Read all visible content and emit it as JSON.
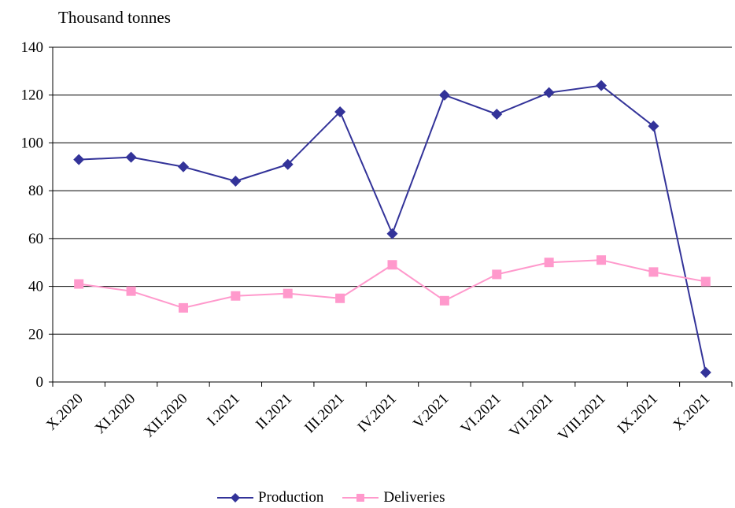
{
  "chart_data": {
    "type": "line",
    "ylabel": "Thousand tonnes",
    "ylim": [
      0,
      140
    ],
    "yticks": [
      0,
      20,
      40,
      60,
      80,
      100,
      120,
      140
    ],
    "grid": true,
    "legend_position": "bottom",
    "categories": [
      "X.2020",
      "XI.2020",
      "XII.2020",
      "I.2021",
      "II.2021",
      "III.2021",
      "IV.2021",
      "V.2021",
      "VI.2021",
      "VII.2021",
      "VIII.2021",
      "IX.2021",
      "X.2021"
    ],
    "series": [
      {
        "name": "Production",
        "color": "#333399",
        "marker": "diamond",
        "values": [
          93,
          94,
          90,
          84,
          91,
          113,
          62,
          120,
          112,
          121,
          124,
          107,
          4
        ]
      },
      {
        "name": "Deliveries",
        "color": "#ff99cc",
        "marker": "square",
        "values": [
          41,
          38,
          31,
          36,
          37,
          35,
          49,
          34,
          45,
          50,
          51,
          46,
          42
        ]
      }
    ]
  }
}
